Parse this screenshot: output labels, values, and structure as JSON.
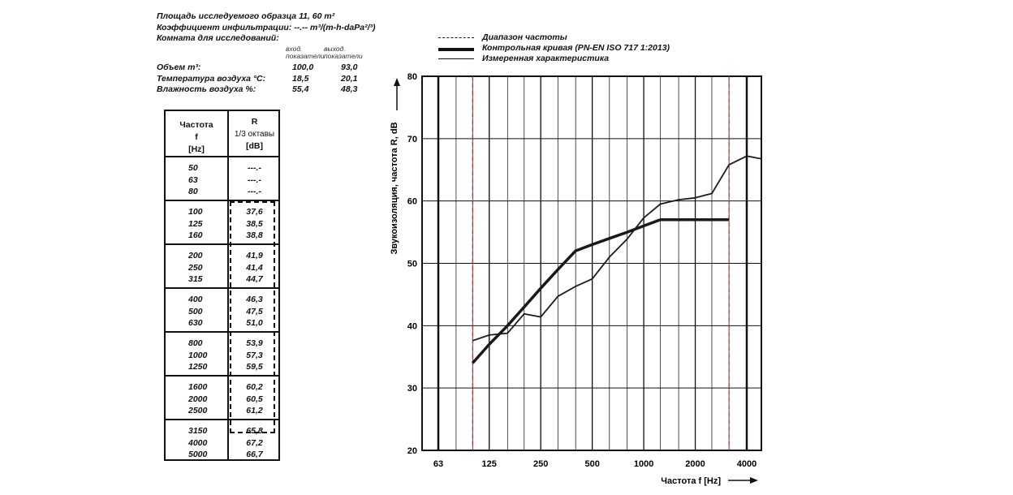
{
  "header": {
    "area": "Площадь исследуемого образца  11, 60 m²",
    "infiltration": "Коэффициент инфильтрации: --.-- m³/(m-h-daPa²/³)",
    "room": "Комната для исследований:",
    "col_in": [
      "вход.",
      "показатели"
    ],
    "col_out": [
      "выход.",
      "показатели"
    ],
    "conditions": [
      {
        "label": "Объем m³:",
        "in": "100,0",
        "out": "93,0"
      },
      {
        "label": "Температура воздуха °C:",
        "in": "18,5",
        "out": "20,1"
      },
      {
        "label": "Влажность воздуха %:",
        "in": "55,4",
        "out": "48,3"
      }
    ]
  },
  "table": {
    "head_freq": [
      "Частота",
      "f",
      "[Hz]"
    ],
    "head_r": [
      "R",
      "1/3 октавы",
      "[dB]"
    ],
    "groups": [
      {
        "freqs": [
          "50",
          "63",
          "80"
        ],
        "values": [
          "---.-",
          "---.-",
          "---.-"
        ]
      },
      {
        "freqs": [
          "100",
          "125",
          "160"
        ],
        "values": [
          "37,6",
          "38,5",
          "38,8"
        ]
      },
      {
        "freqs": [
          "200",
          "250",
          "315"
        ],
        "values": [
          "41,9",
          "41,4",
          "44,7"
        ]
      },
      {
        "freqs": [
          "400",
          "500",
          "630"
        ],
        "values": [
          "46,3",
          "47,5",
          "51,0"
        ]
      },
      {
        "freqs": [
          "800",
          "1000",
          "1250"
        ],
        "values": [
          "53,9",
          "57,3",
          "59,5"
        ]
      },
      {
        "freqs": [
          "1600",
          "2000",
          "2500"
        ],
        "values": [
          "60,2",
          "60,5",
          "61,2"
        ]
      },
      {
        "freqs": [
          "3150",
          "4000",
          "5000"
        ],
        "values": [
          "65,8",
          "67,2",
          "66,7"
        ]
      }
    ]
  },
  "legend": {
    "range": "Диапазон частоты",
    "reference": "Контрольная кривая (PN-EN ISO 717 1:2013)",
    "measured": "Измеренная характеристика"
  },
  "chart_data": {
    "type": "line",
    "xlabel": "Частота f [Hz]",
    "ylabel": "Звукоизоляция, частота R, dB",
    "x_scale": "log",
    "x_ticks": [
      63,
      125,
      250,
      500,
      1000,
      2000,
      4000
    ],
    "x_tick_labels": [
      "63",
      "125",
      "250",
      "500",
      "1000",
      "2000",
      "4000"
    ],
    "ylim": [
      20,
      80
    ],
    "y_ticks": [
      20,
      30,
      40,
      50,
      60,
      70,
      80
    ],
    "grid": true,
    "range_lines": [
      100,
      3150
    ],
    "series": [
      {
        "name": "Измеренная характеристика",
        "x": [
          100,
          125,
          160,
          200,
          250,
          315,
          400,
          500,
          630,
          800,
          1000,
          1250,
          1600,
          2000,
          2500,
          3150,
          4000,
          5000
        ],
        "y": [
          37.6,
          38.5,
          38.8,
          41.9,
          41.4,
          44.7,
          46.3,
          47.5,
          51.0,
          53.9,
          57.3,
          59.5,
          60.2,
          60.5,
          61.2,
          65.8,
          67.2,
          66.7
        ]
      },
      {
        "name": "Контрольная кривая (PN-EN ISO 717 1:2013)",
        "x": [
          100,
          125,
          160,
          200,
          250,
          315,
          400,
          500,
          630,
          800,
          1000,
          1250,
          1600,
          2000,
          2500,
          3150
        ],
        "y": [
          34,
          37,
          40,
          43,
          46,
          49,
          52,
          53,
          54,
          55,
          56,
          57,
          57,
          57,
          57,
          57
        ]
      }
    ]
  }
}
